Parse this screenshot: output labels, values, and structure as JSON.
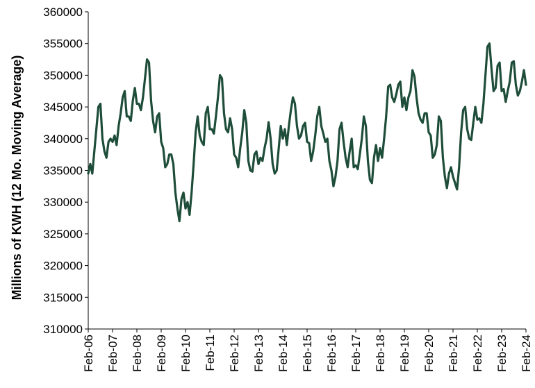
{
  "chart_data": {
    "type": "line",
    "title": "",
    "xlabel": "",
    "ylabel": "Millions of KWH (12 Mo. Moving Average)",
    "ylim": [
      310000,
      360000
    ],
    "y_ticks": [
      310000,
      315000,
      320000,
      325000,
      330000,
      335000,
      340000,
      345000,
      350000,
      355000,
      360000
    ],
    "x_tick_labels": [
      "Feb-06",
      "Feb-07",
      "Feb-08",
      "Feb-09",
      "Feb-10",
      "Feb-11",
      "Feb-12",
      "Feb-13",
      "Feb-14",
      "Feb-15",
      "Feb-16",
      "Feb-17",
      "Feb-18",
      "Feb-19",
      "Feb-20",
      "Feb-21",
      "Feb-22",
      "Feb-23",
      "Feb-24"
    ],
    "grid": false,
    "line_color": "#1e4d3a",
    "series": [
      {
        "values": [
          334500,
          336000,
          334500,
          338000,
          341500,
          345000,
          345500,
          340000,
          338000,
          337000,
          339500,
          340000,
          339500,
          340500,
          339000,
          342000,
          344000,
          346500,
          347500,
          343500,
          343500,
          342800,
          346000,
          348000,
          345500,
          345500,
          344500,
          346500,
          349500,
          352500,
          352000,
          346000,
          342800,
          341000,
          343500,
          344000,
          339500,
          338500,
          335500,
          336000,
          337500,
          337500,
          336000,
          331500,
          329000,
          327000,
          330500,
          331500,
          329000,
          330000,
          328000,
          331500,
          336000,
          341000,
          343500,
          340500,
          339500,
          339000,
          344000,
          345000,
          341500,
          341500,
          340800,
          343500,
          346500,
          350000,
          349500,
          344000,
          341500,
          341000,
          343200,
          341500,
          337500,
          337000,
          335500,
          338500,
          341000,
          344500,
          342500,
          336500,
          335000,
          334800,
          337500,
          338000,
          336000,
          337000,
          336500,
          338500,
          340000,
          342600,
          340000,
          336000,
          334500,
          335000,
          338500,
          342000,
          340000,
          341500,
          339000,
          342000,
          344500,
          346500,
          345500,
          342000,
          340000,
          340500,
          342000,
          342500,
          339500,
          339300,
          336500,
          338000,
          340500,
          343500,
          345000,
          342000,
          340800,
          339500,
          340000,
          336500,
          335000,
          332500,
          334000,
          336500,
          341500,
          342500,
          339500,
          337000,
          335500,
          338000,
          340000,
          335500,
          335800,
          335200,
          337500,
          340000,
          343500,
          342000,
          336500,
          333500,
          333000,
          337000,
          339000,
          336500,
          338500,
          337000,
          340000,
          343500,
          348200,
          348500,
          346500,
          345800,
          347000,
          348500,
          349000,
          345000,
          346500,
          344500,
          346500,
          347500,
          350800,
          349800,
          346500,
          344000,
          343000,
          342500,
          344000,
          344000,
          341000,
          340500,
          337000,
          337500,
          339000,
          343500,
          342800,
          337000,
          334000,
          332200,
          334500,
          335500,
          334000,
          333000,
          332000,
          335500,
          341000,
          344500,
          345000,
          341500,
          340000,
          339800,
          342500,
          345000,
          343000,
          343200,
          342500,
          345500,
          350000,
          354500,
          355000,
          351000,
          347500,
          348000,
          351500,
          352000,
          347500,
          347800,
          345800,
          347500,
          349000,
          352000,
          352200,
          348500,
          346800,
          347500,
          349000,
          350800,
          348500
        ]
      }
    ]
  }
}
